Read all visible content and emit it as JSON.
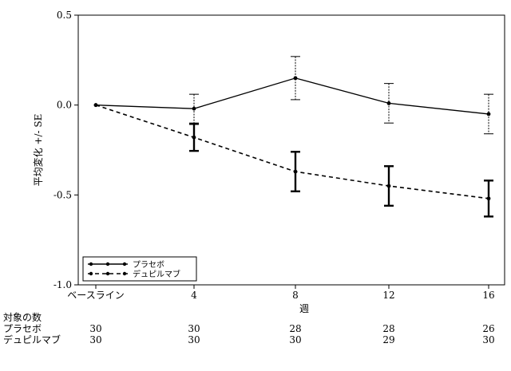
{
  "chart_data": {
    "type": "line",
    "xlabel": "週",
    "ylabel": "平均変化 +/- SE",
    "categories": [
      "ベースライン",
      "4",
      "8",
      "12",
      "16"
    ],
    "ylim": [
      -1.0,
      0.5
    ],
    "yticks": [
      "0.5",
      "0.0",
      "-0.5",
      "-1.0"
    ],
    "ytick_values": [
      0.5,
      0.0,
      -0.5,
      -1.0
    ],
    "legend_position": "bottom-left",
    "series": [
      {
        "name": "プラセボ",
        "style": "solid",
        "values": [
          0.0,
          -0.02,
          0.15,
          0.01,
          -0.05
        ],
        "se": [
          0.0,
          0.08,
          0.12,
          0.11,
          0.11
        ]
      },
      {
        "name": "デュピルマブ",
        "style": "dashed",
        "values": [
          0.0,
          -0.18,
          -0.37,
          -0.45,
          -0.52
        ],
        "se": [
          0.0,
          0.075,
          0.11,
          0.11,
          0.1
        ]
      }
    ]
  },
  "subject_table": {
    "header": "対象の数",
    "rows": [
      {
        "label": "プラセボ",
        "counts": [
          "30",
          "30",
          "28",
          "28",
          "26"
        ]
      },
      {
        "label": "デュピルマブ",
        "counts": [
          "30",
          "30",
          "30",
          "29",
          "30"
        ]
      }
    ]
  }
}
